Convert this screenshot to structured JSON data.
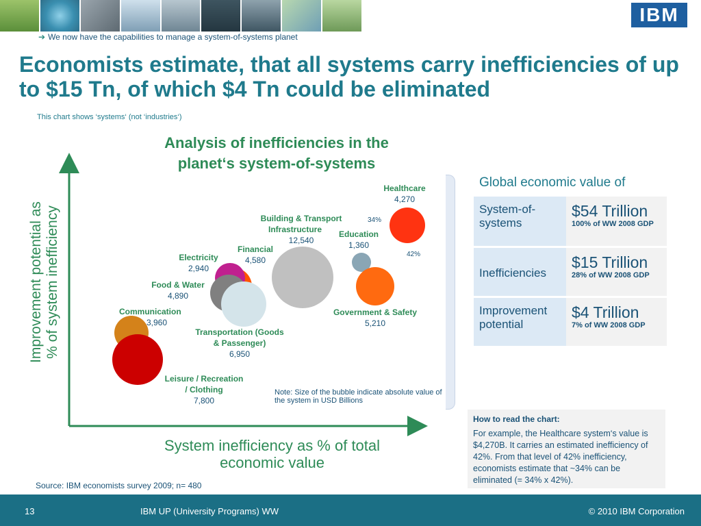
{
  "header": {
    "tagline_arrow": "➔",
    "tagline": "We now have the capabilities to manage a system-of-systems planet",
    "logo_text": "IBM"
  },
  "slide": {
    "title": "Economists estimate, that all systems carry inefficiencies of up to $15 Tn, of which $4 Tn could be eliminated",
    "note": "This chart shows ‘systems‘ (not ‘industries‘)"
  },
  "chart_data": {
    "type": "scatter",
    "title_line1": "Analysis of inefficiencies in the",
    "title_line2": "planet‘s system-of-systems",
    "ylabel_line1": "Improvement potential as",
    "ylabel_line2": "% of system inefficiency",
    "xlabel_line1": "System inefficiency as % of total",
    "xlabel_line2": "economic value",
    "bubbles": [
      {
        "name_line1": "Healthcare",
        "name_line2": "",
        "value": "4,270",
        "color": "#ff3311"
      },
      {
        "name_line1": "Building & Transport",
        "name_line2": "Infrastructure",
        "value": "12,540",
        "color": "#c0c0c0"
      },
      {
        "name_line1": "Education",
        "name_line2": "",
        "value": "1,360",
        "color": "#8aa6b5"
      },
      {
        "name_line1": "Financial",
        "name_line2": "",
        "value": "4,580",
        "color": "#ff5500"
      },
      {
        "name_line1": "Electricity",
        "name_line2": "",
        "value": "2,940",
        "color": "#c0208f"
      },
      {
        "name_line1": "Food & Water",
        "name_line2": "",
        "value": "4,890",
        "color": "#808080"
      },
      {
        "name_line1": "Government & Safety",
        "name_line2": "",
        "value": "5,210",
        "color": "#ff6a10"
      },
      {
        "name_line1": "Communication",
        "name_line2": "",
        "value": "3,960",
        "color": "#d4821a"
      },
      {
        "name_line1": "Transportation (Goods",
        "name_line2": "& Passenger)",
        "value": "6,950",
        "color": "#d4e4ea"
      },
      {
        "name_line1": "Leisure / Recreation",
        "name_line2": "/ Clothing",
        "value": "7,800",
        "color": "#cc0000"
      }
    ],
    "annotation_34": "34%",
    "annotation_42": "42%",
    "bubble_note": "Note: Size of the bubble indicate absolute value of the system in USD Billions"
  },
  "table": {
    "title": "Global economic value of",
    "rows": [
      {
        "label": "System-of-systems",
        "big": "$54 Trillion",
        "small": "100% of WW 2008 GDP"
      },
      {
        "label": "Inefficiencies",
        "big": "$15 Trillion",
        "small": "28% of WW 2008 GDP"
      },
      {
        "label": "Improvement potential",
        "big": "$4 Trillion",
        "small": "7% of WW 2008 GDP"
      }
    ]
  },
  "howto": {
    "heading": "How to read the chart:",
    "body": "For example, the Healthcare system‘s value is $4,270B. It carries an estimated inefficiency of 42%. From that level of 42% inefficiency, economists estimate that ~34% can be eliminated (= 34% x 42%)."
  },
  "source": "Source: IBM economists survey 2009; n= 480",
  "footer": {
    "page": "13",
    "center": "IBM UP (University Programs) WW",
    "copyright": "© 2010 IBM Corporation"
  },
  "colors": {
    "title_teal": "#1f7a8c",
    "axis_green": "#2e8b57",
    "footer_bg": "#1b6f85",
    "logo_blue": "#1e5fa0"
  }
}
